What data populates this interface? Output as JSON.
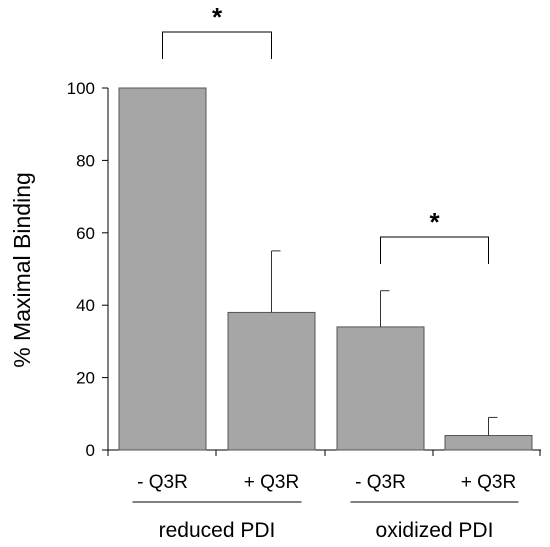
{
  "chart_data": {
    "type": "bar",
    "title": "",
    "xlabel": "",
    "ylabel": "% Maximal Binding",
    "ylim": [
      0,
      100
    ],
    "yticks": [
      0,
      20,
      40,
      60,
      80,
      100
    ],
    "grid": false,
    "categories": [
      "- Q3R",
      "+ Q3R",
      "- Q3R",
      "+ Q3R"
    ],
    "groups": [
      {
        "label": "reduced PDI",
        "categories": [
          0,
          1
        ]
      },
      {
        "label": "oxidized PDI",
        "categories": [
          2,
          3
        ]
      }
    ],
    "series": [
      {
        "values": [
          100,
          38,
          34,
          4
        ],
        "errors": [
          0,
          17,
          10,
          5
        ]
      }
    ],
    "significance": [
      {
        "between": [
          0,
          1
        ],
        "label": "*"
      },
      {
        "between": [
          2,
          3
        ],
        "label": "*"
      }
    ],
    "bar_color": "#a6a6a6",
    "edge_color": "#555555"
  }
}
